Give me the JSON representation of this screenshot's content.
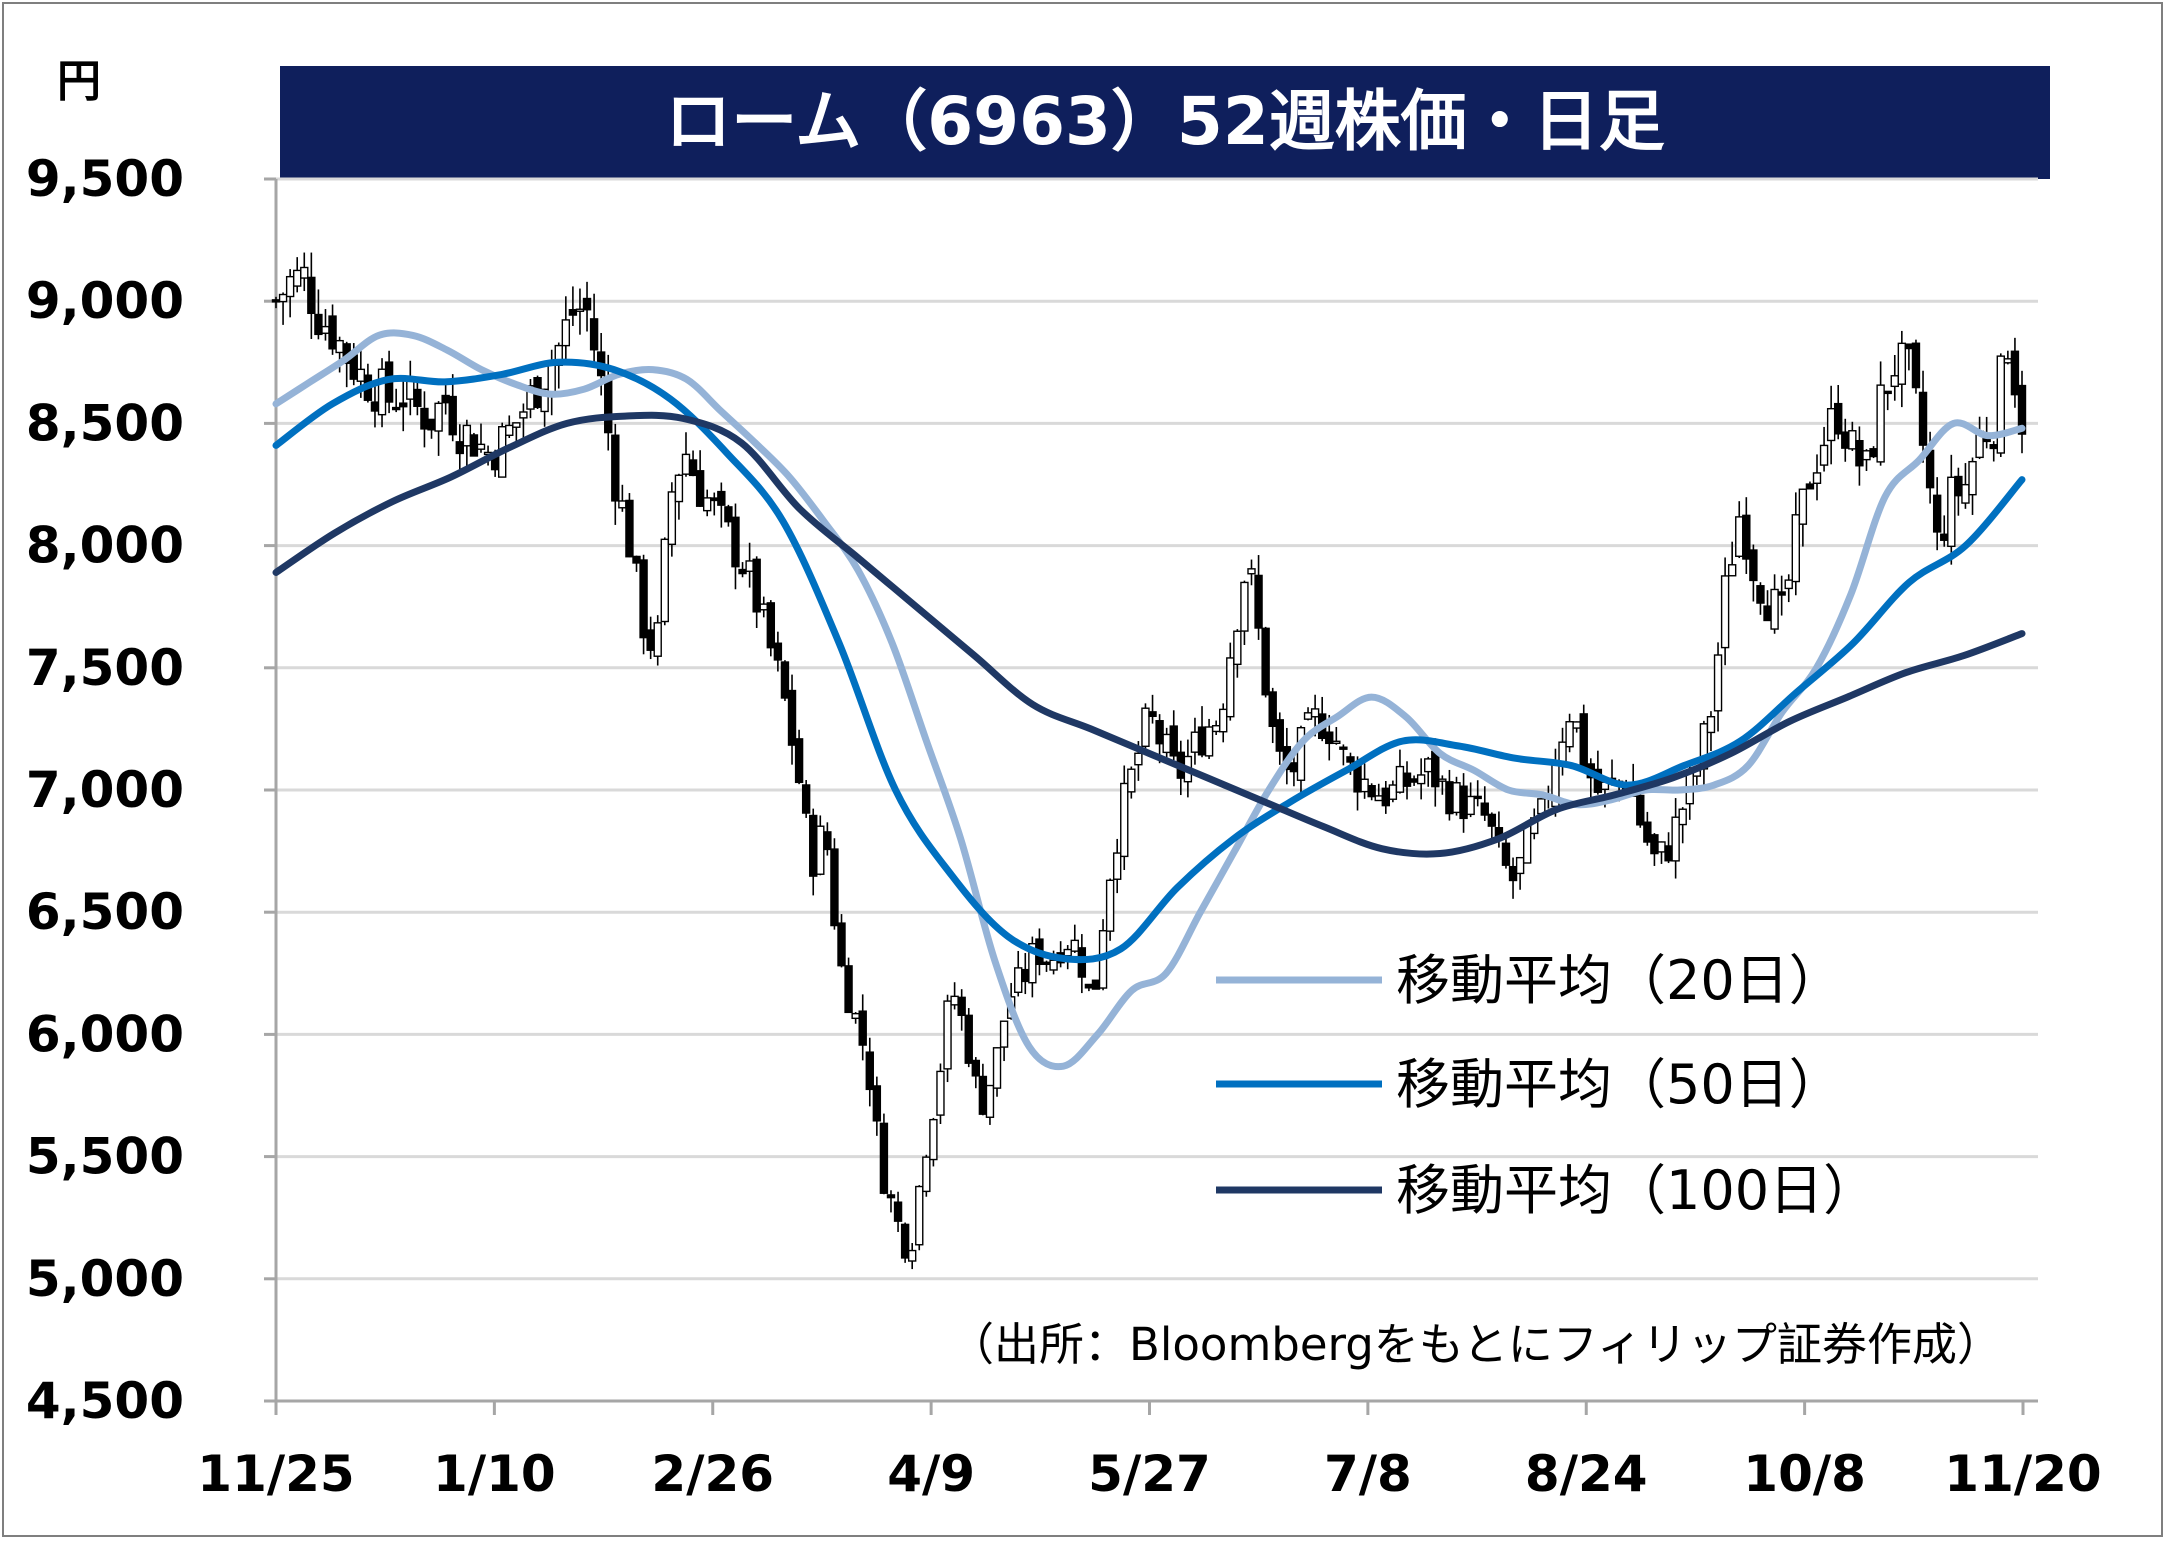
{
  "chart_data": {
    "type": "line",
    "title": "ローム（6963）52週株価・日足",
    "unit": "円",
    "source": "（出所：Bloombergをもとにフィリップ証券作成）",
    "ylim": [
      4500,
      9500
    ],
    "y_ticks": [
      "4,500",
      "5,000",
      "5,500",
      "6,000",
      "6,500",
      "7,000",
      "7,500",
      "8,000",
      "8,500",
      "9,000",
      "9,500"
    ],
    "y_tick_values": [
      4500,
      5000,
      5500,
      6000,
      6500,
      7000,
      7500,
      8000,
      8500,
      9000,
      9500
    ],
    "x_ticks": [
      "11/25",
      "1/10",
      "2/26",
      "4/9",
      "5/27",
      "7/8",
      "8/24",
      "10/8",
      "11/20"
    ],
    "grid": true,
    "legend_position": "inside-right",
    "price_series": [
      9000,
      9080,
      9100,
      8950,
      8880,
      8780,
      8700,
      8650,
      8600,
      8620,
      8560,
      8520,
      8600,
      8480,
      8440,
      8380,
      8420,
      8500,
      8600,
      8700,
      8800,
      8950,
      8980,
      8700,
      8300,
      8050,
      7700,
      7550,
      8200,
      8400,
      8250,
      8150,
      8050,
      7950,
      7800,
      7600,
      7400,
      7100,
      6700,
      6850,
      6300,
      6100,
      5900,
      5450,
      5250,
      5100,
      5500,
      5800,
      6200,
      6000,
      5700,
      5850,
      6150,
      6220,
      6350,
      6300,
      6400,
      6350,
      6100,
      6600,
      6900,
      7100,
      7300,
      7180,
      7050,
      7150,
      7250,
      7300,
      7650,
      7950,
      7550,
      7150,
      7050,
      7200,
      7300,
      7250,
      7100,
      7050,
      7000,
      6980,
      7020,
      7050,
      7080,
      7000,
      6960,
      6920,
      6880,
      6700,
      6620,
      6800,
      6900,
      7180,
      7350,
      7100,
      6980,
      7020,
      7050,
      6850,
      6700,
      6780,
      6950,
      7100,
      7350,
      7850,
      8150,
      7900,
      7780,
      7700,
      8050,
      8300,
      8450,
      8550,
      8380,
      8300,
      8600,
      8750,
      8700,
      8400,
      8000,
      8200,
      8250,
      8450,
      8500,
      8850,
      8520
    ],
    "series": [
      {
        "name": "移動平均（20日）",
        "color": "#95b3d7",
        "values": [
          8580,
          8670,
          8760,
          8860,
          8860,
          8800,
          8720,
          8660,
          8620,
          8640,
          8700,
          8720,
          8680,
          8550,
          8420,
          8280,
          8100,
          7900,
          7600,
          7200,
          6800,
          6300,
          5950,
          5870,
          6000,
          6180,
          6250,
          6500,
          6750,
          7000,
          7200,
          7300,
          7380,
          7300,
          7150,
          7080,
          7000,
          6980,
          6940,
          6960,
          7000,
          7000,
          7020,
          7100,
          7320,
          7500,
          7800,
          8200,
          8350,
          8500,
          8450,
          8480
        ]
      },
      {
        "name": "移動平均（50日）",
        "color": "#0070c0",
        "values": [
          8410,
          8580,
          8680,
          8670,
          8700,
          8750,
          8720,
          8600,
          8380,
          8100,
          7600,
          7000,
          6650,
          6400,
          6310,
          6350,
          6600,
          6800,
          6950,
          7080,
          7200,
          7180,
          7130,
          7100,
          7020,
          7100,
          7200,
          7400,
          7600,
          7850,
          8000,
          8270
        ]
      },
      {
        "name": "移動平均（100日）",
        "color": "#1f3864",
        "values": [
          7890,
          8050,
          8180,
          8280,
          8400,
          8500,
          8530,
          8520,
          8420,
          8150,
          7950,
          7750,
          7550,
          7350,
          7250,
          7150,
          7050,
          6950,
          6850,
          6760,
          6740,
          6800,
          6920,
          6980,
          7050,
          7150,
          7280,
          7380,
          7480,
          7550,
          7640
        ]
      }
    ]
  }
}
